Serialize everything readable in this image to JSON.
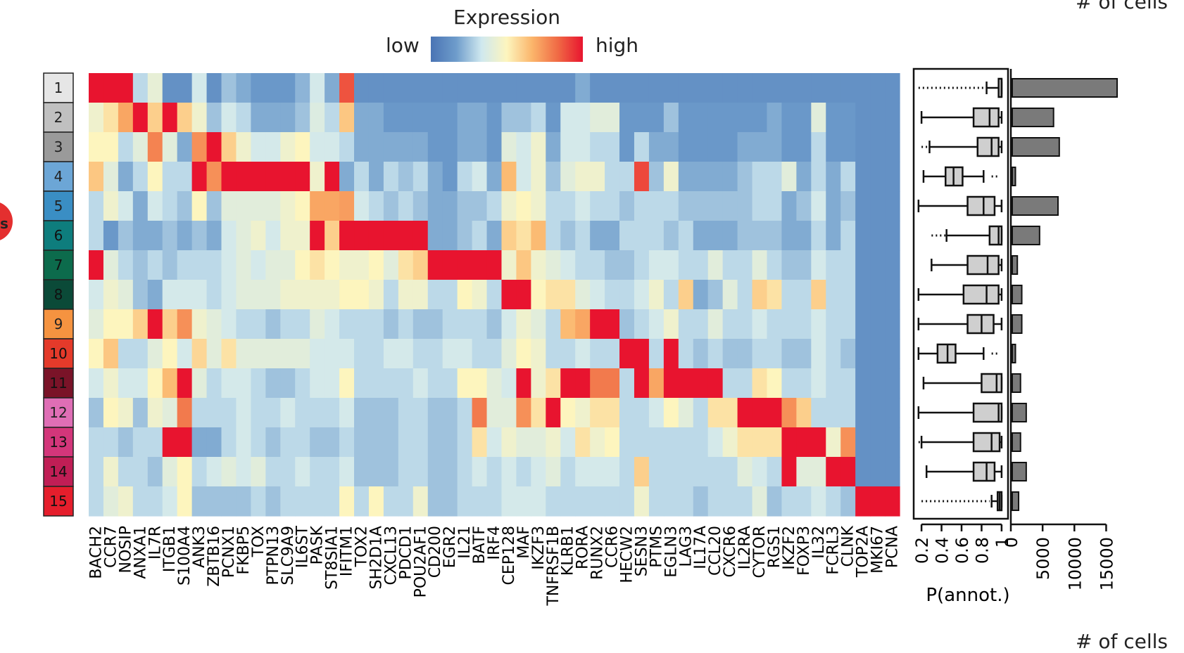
{
  "legend": {
    "title": "Expression",
    "low": "low",
    "high": "high",
    "gradient": [
      "#4a74b4",
      "#6e9ccb",
      "#cfe8ef",
      "#fdf5be",
      "#fbb56b",
      "#f06b45",
      "#e8142f"
    ]
  },
  "corner_top": "# of cells",
  "corner_bottom": "# of cells",
  "bubble_text": "s",
  "chart_data": [
    {
      "type": "heatmap",
      "title": "",
      "clusters": [
        {
          "label": "1",
          "color": "#e6e6e6"
        },
        {
          "label": "2",
          "color": "#c0c0c0"
        },
        {
          "label": "3",
          "color": "#9a9a9a"
        },
        {
          "label": "4",
          "color": "#6ca6d6"
        },
        {
          "label": "5",
          "color": "#3a8ec4"
        },
        {
          "label": "6",
          "color": "#0e7d7d"
        },
        {
          "label": "7",
          "color": "#0c6b4c"
        },
        {
          "label": "8",
          "color": "#0b4a38"
        },
        {
          "label": "9",
          "color": "#f59340"
        },
        {
          "label": "10",
          "color": "#e43a2a"
        },
        {
          "label": "11",
          "color": "#7a1328"
        },
        {
          "label": "12",
          "color": "#df6eb5"
        },
        {
          "label": "13",
          "color": "#d3367a"
        },
        {
          "label": "14",
          "color": "#c01e55"
        },
        {
          "label": "15",
          "color": "#e51e2c"
        }
      ],
      "genes": [
        "BACH2",
        "CCR7",
        "NOSIP",
        "ANXA1",
        "IL7R",
        "ITGB1",
        "S100A4",
        "ANK3",
        "ZBTB16",
        "PCNX1",
        "FKBP5",
        "TOX",
        "PTPN13",
        "SLC9A9",
        "IL6ST",
        "PASK",
        "ST8SIA1",
        "IFITM1",
        "TOX2",
        "SH2D1A",
        "CXCL13",
        "PDCD1",
        "POU2AF1",
        "CD200",
        "EGR2",
        "IL21",
        "BATF",
        "IRF4",
        "CEP128",
        "MAF",
        "IKZF3",
        "TNFRSF1B",
        "KLRB1",
        "RORA",
        "RUNX2",
        "CCR6",
        "HECW2",
        "SESN3",
        "PTMS",
        "EGLN3",
        "LAG3",
        "IL17A",
        "CCL20",
        "CXCR6",
        "IL2RA",
        "CYTOR",
        "RGS1",
        "IKZF2",
        "FOXP3",
        "IL32",
        "FCRL3",
        "CLNK",
        "TOP2A",
        "MKI67",
        "PCNA"
      ],
      "values": [
        [
          1.0,
          1.0,
          1.0,
          0.3,
          0.42,
          0.12,
          0.12,
          0.35,
          0.12,
          0.25,
          0.2,
          0.15,
          0.15,
          0.15,
          0.22,
          0.35,
          0.2,
          0.88,
          0.12,
          0.12,
          0.12,
          0.12,
          0.12,
          0.12,
          0.12,
          0.12,
          0.12,
          0.12,
          0.12,
          0.12,
          0.12,
          0.12,
          0.12,
          0.2,
          0.12,
          0.12,
          0.12,
          0.12,
          0.12,
          0.12,
          0.12,
          0.12,
          0.12,
          0.12,
          0.12,
          0.12,
          0.12,
          0.12,
          0.12,
          0.12,
          0.12,
          0.12,
          0.12,
          0.12,
          0.12
        ],
        [
          0.45,
          0.55,
          0.7,
          1.0,
          0.6,
          1.0,
          0.6,
          0.45,
          0.25,
          0.35,
          0.3,
          0.2,
          0.2,
          0.2,
          0.25,
          0.38,
          0.3,
          0.62,
          0.2,
          0.2,
          0.15,
          0.15,
          0.15,
          0.15,
          0.15,
          0.2,
          0.2,
          0.15,
          0.25,
          0.25,
          0.3,
          0.15,
          0.35,
          0.35,
          0.4,
          0.4,
          0.15,
          0.15,
          0.15,
          0.25,
          0.15,
          0.15,
          0.15,
          0.15,
          0.15,
          0.15,
          0.2,
          0.15,
          0.15,
          0.4,
          0.15,
          0.15,
          0.12,
          0.12,
          0.12
        ],
        [
          0.5,
          0.5,
          0.3,
          0.4,
          0.78,
          0.4,
          0.2,
          0.75,
          1.0,
          0.6,
          0.45,
          0.35,
          0.35,
          0.45,
          0.5,
          0.35,
          0.35,
          0.3,
          0.2,
          0.2,
          0.2,
          0.2,
          0.2,
          0.15,
          0.15,
          0.2,
          0.2,
          0.15,
          0.4,
          0.35,
          0.45,
          0.2,
          0.35,
          0.35,
          0.3,
          0.3,
          0.15,
          0.3,
          0.2,
          0.2,
          0.15,
          0.15,
          0.15,
          0.15,
          0.2,
          0.2,
          0.2,
          0.15,
          0.15,
          0.3,
          0.15,
          0.15,
          0.12,
          0.12,
          0.12
        ],
        [
          0.62,
          0.4,
          0.2,
          0.3,
          0.5,
          0.3,
          0.3,
          1.0,
          0.75,
          1.0,
          1.0,
          1.0,
          1.0,
          1.0,
          1.0,
          0.45,
          1.0,
          0.2,
          0.3,
          0.2,
          0.3,
          0.25,
          0.3,
          0.2,
          0.15,
          0.3,
          0.35,
          0.2,
          0.65,
          0.35,
          0.45,
          0.25,
          0.4,
          0.45,
          0.45,
          0.3,
          0.3,
          0.9,
          0.25,
          0.45,
          0.2,
          0.2,
          0.2,
          0.2,
          0.25,
          0.3,
          0.3,
          0.4,
          0.2,
          0.3,
          0.2,
          0.3,
          0.12,
          0.12,
          0.12
        ],
        [
          0.3,
          0.45,
          0.35,
          0.2,
          0.35,
          0.3,
          0.25,
          0.5,
          0.25,
          0.4,
          0.4,
          0.4,
          0.4,
          0.45,
          0.5,
          0.7,
          0.7,
          0.72,
          0.35,
          0.3,
          0.25,
          0.3,
          0.25,
          0.2,
          0.2,
          0.25,
          0.25,
          0.3,
          0.45,
          0.5,
          0.45,
          0.3,
          0.3,
          0.35,
          0.3,
          0.3,
          0.25,
          0.3,
          0.3,
          0.3,
          0.25,
          0.25,
          0.25,
          0.25,
          0.25,
          0.3,
          0.3,
          0.2,
          0.25,
          0.35,
          0.2,
          0.25,
          0.12,
          0.12,
          0.12
        ],
        [
          0.3,
          0.15,
          0.25,
          0.2,
          0.2,
          0.25,
          0.2,
          0.25,
          0.2,
          0.35,
          0.4,
          0.45,
          0.35,
          0.45,
          0.45,
          1.0,
          0.6,
          1.0,
          1.0,
          1.0,
          1.0,
          1.0,
          1.0,
          0.2,
          0.2,
          0.25,
          0.3,
          0.2,
          0.6,
          0.55,
          0.65,
          0.3,
          0.25,
          0.3,
          0.2,
          0.2,
          0.3,
          0.3,
          0.3,
          0.25,
          0.3,
          0.2,
          0.2,
          0.2,
          0.25,
          0.25,
          0.25,
          0.2,
          0.2,
          0.3,
          0.2,
          0.3,
          0.12,
          0.12,
          0.12
        ],
        [
          1.0,
          0.4,
          0.3,
          0.25,
          0.3,
          0.25,
          0.3,
          0.3,
          0.3,
          0.35,
          0.4,
          0.35,
          0.4,
          0.4,
          0.5,
          0.55,
          0.5,
          0.45,
          0.45,
          0.5,
          0.4,
          0.55,
          0.6,
          1.0,
          1.0,
          1.0,
          1.0,
          1.0,
          0.45,
          0.62,
          0.45,
          0.4,
          0.35,
          0.3,
          0.3,
          0.25,
          0.25,
          0.3,
          0.35,
          0.35,
          0.3,
          0.3,
          0.4,
          0.3,
          0.3,
          0.4,
          0.3,
          0.25,
          0.25,
          0.35,
          0.3,
          0.3,
          0.12,
          0.12,
          0.12
        ],
        [
          0.35,
          0.45,
          0.4,
          0.25,
          0.2,
          0.35,
          0.35,
          0.35,
          0.3,
          0.35,
          0.4,
          0.4,
          0.4,
          0.45,
          0.45,
          0.45,
          0.45,
          0.5,
          0.5,
          0.45,
          0.3,
          0.45,
          0.45,
          0.3,
          0.3,
          0.5,
          0.45,
          0.3,
          1.0,
          1.0,
          0.5,
          0.55,
          0.55,
          0.4,
          0.35,
          0.3,
          0.3,
          0.35,
          0.45,
          0.3,
          0.6,
          0.2,
          0.25,
          0.4,
          0.3,
          0.6,
          0.55,
          0.3,
          0.3,
          0.6,
          0.3,
          0.3,
          0.12,
          0.12,
          0.12
        ],
        [
          0.4,
          0.5,
          0.5,
          0.6,
          1.0,
          0.6,
          0.75,
          0.45,
          0.4,
          0.35,
          0.3,
          0.3,
          0.25,
          0.3,
          0.3,
          0.4,
          0.35,
          0.3,
          0.3,
          0.3,
          0.25,
          0.3,
          0.25,
          0.25,
          0.3,
          0.3,
          0.3,
          0.25,
          0.35,
          0.45,
          0.4,
          0.3,
          0.65,
          0.7,
          1.0,
          1.0,
          0.25,
          0.3,
          0.35,
          0.45,
          0.3,
          0.3,
          0.4,
          0.3,
          0.3,
          0.35,
          0.3,
          0.3,
          0.3,
          0.35,
          0.3,
          0.3,
          0.12,
          0.12,
          0.12
        ],
        [
          0.5,
          0.62,
          0.3,
          0.3,
          0.4,
          0.5,
          0.35,
          0.58,
          0.4,
          0.55,
          0.4,
          0.4,
          0.4,
          0.4,
          0.4,
          0.35,
          0.35,
          0.35,
          0.3,
          0.3,
          0.35,
          0.35,
          0.3,
          0.3,
          0.35,
          0.35,
          0.3,
          0.3,
          0.4,
          0.5,
          0.45,
          0.3,
          0.3,
          0.35,
          0.3,
          0.3,
          1.0,
          1.0,
          0.3,
          1.0,
          0.3,
          0.25,
          0.3,
          0.25,
          0.25,
          0.3,
          0.3,
          0.25,
          0.25,
          0.35,
          0.3,
          0.25,
          0.12,
          0.12,
          0.12
        ],
        [
          0.35,
          0.45,
          0.35,
          0.35,
          0.5,
          0.65,
          1.0,
          0.4,
          0.3,
          0.35,
          0.35,
          0.3,
          0.25,
          0.25,
          0.3,
          0.35,
          0.35,
          0.5,
          0.3,
          0.3,
          0.3,
          0.3,
          0.35,
          0.3,
          0.3,
          0.5,
          0.5,
          0.4,
          0.35,
          1.0,
          0.45,
          0.55,
          1.0,
          1.0,
          0.8,
          0.8,
          0.3,
          1.0,
          0.7,
          1.0,
          1.0,
          1.0,
          1.0,
          0.3,
          0.3,
          0.55,
          0.5,
          0.3,
          0.3,
          0.35,
          0.3,
          0.3,
          0.12,
          0.12,
          0.12
        ],
        [
          0.25,
          0.5,
          0.45,
          0.25,
          0.45,
          0.4,
          0.8,
          0.3,
          0.3,
          0.3,
          0.35,
          0.3,
          0.3,
          0.35,
          0.3,
          0.3,
          0.3,
          0.35,
          0.25,
          0.25,
          0.25,
          0.3,
          0.3,
          0.25,
          0.25,
          0.3,
          0.8,
          0.4,
          0.4,
          0.75,
          0.55,
          1.0,
          0.5,
          0.45,
          0.55,
          0.55,
          0.3,
          0.3,
          0.35,
          0.5,
          0.4,
          0.3,
          0.55,
          0.55,
          1.0,
          1.0,
          1.0,
          0.75,
          0.6,
          0.3,
          0.3,
          0.3,
          0.12,
          0.12,
          0.12
        ],
        [
          0.3,
          0.3,
          0.25,
          0.3,
          0.3,
          1.0,
          1.0,
          0.2,
          0.2,
          0.3,
          0.35,
          0.3,
          0.25,
          0.3,
          0.3,
          0.25,
          0.25,
          0.3,
          0.25,
          0.25,
          0.25,
          0.3,
          0.3,
          0.25,
          0.25,
          0.3,
          0.55,
          0.35,
          0.45,
          0.4,
          0.4,
          0.45,
          0.35,
          0.55,
          0.45,
          0.5,
          0.3,
          0.3,
          0.3,
          0.3,
          0.3,
          0.3,
          0.35,
          0.45,
          0.55,
          0.55,
          0.55,
          1.0,
          1.0,
          1.0,
          0.45,
          0.75,
          0.12,
          0.12,
          0.12
        ],
        [
          0.3,
          0.45,
          0.3,
          0.3,
          0.25,
          0.4,
          0.5,
          0.3,
          0.35,
          0.4,
          0.35,
          0.4,
          0.3,
          0.3,
          0.35,
          0.3,
          0.3,
          0.35,
          0.25,
          0.25,
          0.25,
          0.3,
          0.3,
          0.25,
          0.25,
          0.3,
          0.35,
          0.3,
          0.35,
          0.3,
          0.35,
          0.4,
          0.3,
          0.35,
          0.35,
          0.35,
          0.3,
          0.6,
          0.3,
          0.3,
          0.3,
          0.3,
          0.3,
          0.3,
          0.4,
          0.35,
          0.3,
          1.0,
          0.4,
          0.4,
          1.0,
          1.0,
          0.12,
          0.12,
          0.12
        ],
        [
          0.3,
          0.4,
          0.45,
          0.3,
          0.3,
          0.35,
          0.5,
          0.25,
          0.25,
          0.25,
          0.25,
          0.3,
          0.25,
          0.3,
          0.3,
          0.3,
          0.3,
          0.5,
          0.3,
          0.5,
          0.3,
          0.3,
          0.45,
          0.25,
          0.25,
          0.3,
          0.3,
          0.3,
          0.35,
          0.35,
          0.35,
          0.3,
          0.3,
          0.3,
          0.3,
          0.3,
          0.3,
          0.45,
          0.3,
          0.3,
          0.3,
          0.25,
          0.3,
          0.3,
          0.3,
          0.4,
          0.25,
          0.3,
          0.3,
          0.35,
          0.3,
          0.25,
          1.0,
          1.0,
          1.0
        ]
      ]
    },
    {
      "type": "box",
      "xlabel": "P(annot.)",
      "xlim": [
        0.15,
        1.05
      ],
      "ticks": [
        "0.2",
        "0.4",
        "0.6",
        "0.8",
        "1"
      ],
      "boxes": [
        {
          "cluster": "1",
          "whisker_lo": 0.85,
          "q1": 0.97,
          "median": 1.0,
          "q3": 1.0,
          "whisker_hi": 1.0,
          "outlier_lo": 0.17,
          "outlier_hi": 0.82
        },
        {
          "cluster": "2",
          "whisker_lo": 0.2,
          "q1": 0.72,
          "median": 0.88,
          "q3": 0.97,
          "whisker_hi": 1.0
        },
        {
          "cluster": "3",
          "whisker_lo": 0.28,
          "q1": 0.76,
          "median": 0.9,
          "q3": 0.97,
          "whisker_hi": 1.0,
          "outlier_lo": 0.2,
          "outlier_hi": 0.26
        },
        {
          "cluster": "4",
          "whisker_lo": 0.22,
          "q1": 0.44,
          "median": 0.52,
          "q3": 0.61,
          "whisker_hi": 0.82,
          "outlier_lo": 0.9,
          "outlier_hi": 0.96
        },
        {
          "cluster": "5",
          "whisker_lo": 0.17,
          "q1": 0.66,
          "median": 0.82,
          "q3": 0.93,
          "whisker_hi": 1.0
        },
        {
          "cluster": "6",
          "whisker_lo": 0.45,
          "q1": 0.88,
          "median": 0.97,
          "q3": 1.0,
          "whisker_hi": 1.0,
          "outlier_lo": 0.3,
          "outlier_hi": 0.44
        },
        {
          "cluster": "7",
          "whisker_lo": 0.3,
          "q1": 0.66,
          "median": 0.86,
          "q3": 0.97,
          "whisker_hi": 1.0
        },
        {
          "cluster": "8",
          "whisker_lo": 0.17,
          "q1": 0.62,
          "median": 0.85,
          "q3": 0.97,
          "whisker_hi": 1.0
        },
        {
          "cluster": "9",
          "whisker_lo": 0.17,
          "q1": 0.66,
          "median": 0.8,
          "q3": 0.92,
          "whisker_hi": 1.0
        },
        {
          "cluster": "10",
          "whisker_lo": 0.17,
          "q1": 0.36,
          "median": 0.46,
          "q3": 0.54,
          "whisker_hi": 0.82,
          "outlier_lo": 0.9,
          "outlier_hi": 0.96
        },
        {
          "cluster": "11",
          "whisker_lo": 0.22,
          "q1": 0.8,
          "median": 0.95,
          "q3": 1.0,
          "whisker_hi": 1.0
        },
        {
          "cluster": "12",
          "whisker_lo": 0.17,
          "q1": 0.72,
          "median": 0.97,
          "q3": 1.0,
          "whisker_hi": 1.0
        },
        {
          "cluster": "13",
          "whisker_lo": 0.2,
          "q1": 0.72,
          "median": 0.9,
          "q3": 0.98,
          "whisker_hi": 1.0,
          "outlier_lo": 0.17,
          "outlier_hi": 0.19
        },
        {
          "cluster": "14",
          "whisker_lo": 0.25,
          "q1": 0.72,
          "median": 0.85,
          "q3": 0.93,
          "whisker_hi": 1.0
        },
        {
          "cluster": "15",
          "whisker_lo": 0.9,
          "q1": 0.96,
          "median": 0.98,
          "q3": 1.0,
          "whisker_hi": 1.0,
          "outlier_lo": 0.2,
          "outlier_hi": 0.88
        }
      ]
    },
    {
      "type": "bar",
      "orientation": "horizontal",
      "xlabel": "# of cells",
      "xlim": [
        0,
        17500
      ],
      "ticks": [
        0,
        5000,
        10000,
        15000
      ],
      "categories": [
        "1",
        "2",
        "3",
        "4",
        "5",
        "6",
        "7",
        "8",
        "9",
        "10",
        "11",
        "12",
        "13",
        "14",
        "15"
      ],
      "values": [
        16500,
        6500,
        7400,
        500,
        7200,
        4300,
        800,
        1500,
        1500,
        500,
        1300,
        2200,
        1300,
        2200,
        1000
      ]
    }
  ]
}
